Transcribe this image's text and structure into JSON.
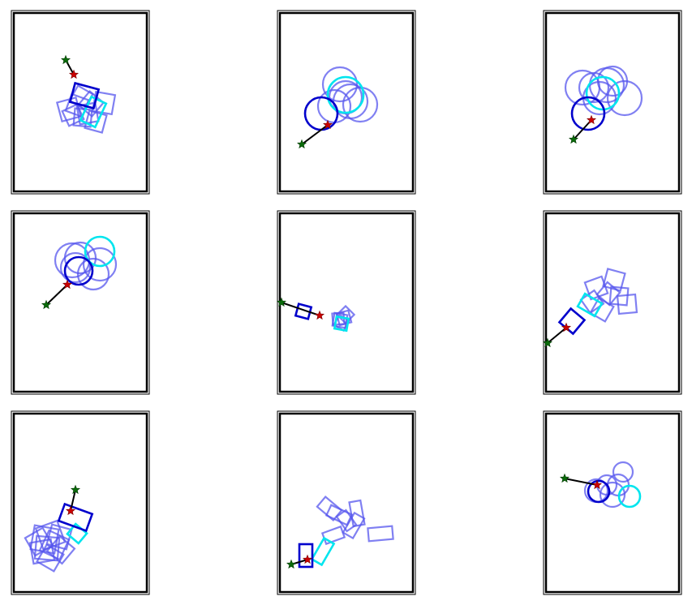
{
  "figure": {
    "colors": {
      "frame": "#000000",
      "shape_faded": "#5555ee",
      "shape_active": "#0000cc",
      "shape_goal": "#00e5ee",
      "start_marker": "#0a6b0a",
      "end_marker": "#cc0000",
      "path_line": "#000000"
    },
    "icons": {
      "start": "green-star-marker",
      "end": "red-star-marker"
    },
    "panels": [
      {
        "id": "r1c1",
        "shape": "square"
      },
      {
        "id": "r1c2",
        "shape": "circle"
      },
      {
        "id": "r1c3",
        "shape": "circle"
      },
      {
        "id": "r2c1",
        "shape": "circle"
      },
      {
        "id": "r2c2",
        "shape": "square"
      },
      {
        "id": "r2c3",
        "shape": "square"
      },
      {
        "id": "r3c1",
        "shape": "square"
      },
      {
        "id": "r3c2",
        "shape": "rectangle"
      },
      {
        "id": "r3c3",
        "shape": "circle"
      }
    ]
  }
}
